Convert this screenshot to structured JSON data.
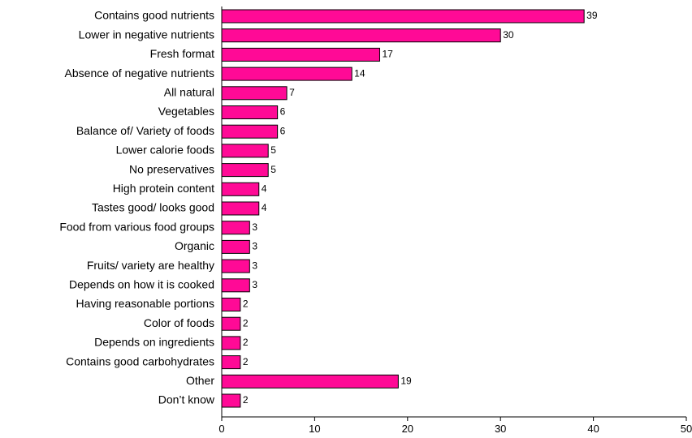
{
  "chart_data": {
    "type": "bar",
    "orientation": "horizontal",
    "categories": [
      "Contains good nutrients",
      "Lower in negative nutrients",
      "Fresh format",
      "Absence of negative nutrients",
      "All natural",
      "Vegetables",
      "Balance of/ Variety of foods",
      "Lower calorie foods",
      "No preservatives",
      "High protein content",
      "Tastes good/ looks good",
      "Food from various food groups",
      "Organic",
      "Fruits/ variety are healthy",
      "Depends on how it is cooked",
      "Having reasonable portions",
      "Color of foods",
      "Depends on ingredients",
      "Contains good carbohydrates",
      "Other",
      "Don’t know"
    ],
    "values": [
      39,
      30,
      17,
      14,
      7,
      6,
      6,
      5,
      5,
      4,
      4,
      3,
      3,
      3,
      3,
      2,
      2,
      2,
      2,
      19,
      2
    ],
    "xlim": [
      0,
      50
    ],
    "xticks": [
      0,
      10,
      20,
      30,
      40,
      50
    ],
    "grid": false,
    "legend": "none",
    "bar_color": "#FF0A96",
    "bar_edge_color": "#000000"
  }
}
